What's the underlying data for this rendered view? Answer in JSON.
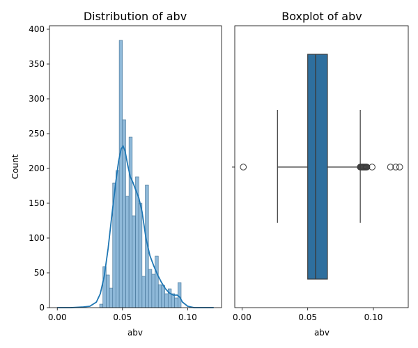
{
  "chart_data": [
    {
      "type": "bar",
      "title": "Distribution of abv",
      "xlabel": "abv",
      "ylabel": "Count",
      "xlim": [
        -0.006,
        0.126
      ],
      "ylim": [
        0,
        405
      ],
      "xticks": [
        0.0,
        0.05,
        0.1
      ],
      "xtick_labels": [
        "0.00",
        "0.05",
        "0.10"
      ],
      "yticks": [
        0,
        50,
        100,
        150,
        200,
        250,
        300,
        350,
        400
      ],
      "ytick_labels": [
        "0",
        "50",
        "100",
        "150",
        "200",
        "250",
        "300",
        "350",
        "400"
      ],
      "bin_width": 0.0025,
      "bins": [
        {
          "x": 0.0325,
          "count": 5
        },
        {
          "x": 0.035,
          "count": 59
        },
        {
          "x": 0.0375,
          "count": 47
        },
        {
          "x": 0.04,
          "count": 28
        },
        {
          "x": 0.0425,
          "count": 179
        },
        {
          "x": 0.045,
          "count": 197
        },
        {
          "x": 0.0475,
          "count": 384
        },
        {
          "x": 0.05,
          "count": 270
        },
        {
          "x": 0.0525,
          "count": 160
        },
        {
          "x": 0.055,
          "count": 245
        },
        {
          "x": 0.0575,
          "count": 132
        },
        {
          "x": 0.06,
          "count": 188
        },
        {
          "x": 0.0625,
          "count": 150
        },
        {
          "x": 0.065,
          "count": 45
        },
        {
          "x": 0.0675,
          "count": 176
        },
        {
          "x": 0.07,
          "count": 55
        },
        {
          "x": 0.0725,
          "count": 48
        },
        {
          "x": 0.075,
          "count": 74
        },
        {
          "x": 0.0775,
          "count": 33
        },
        {
          "x": 0.08,
          "count": 32
        },
        {
          "x": 0.0825,
          "count": 20
        },
        {
          "x": 0.085,
          "count": 27
        },
        {
          "x": 0.0875,
          "count": 20
        },
        {
          "x": 0.09,
          "count": 14
        },
        {
          "x": 0.0925,
          "count": 36
        }
      ],
      "kde": [
        [
          0.0,
          0
        ],
        [
          0.01,
          0
        ],
        [
          0.02,
          1
        ],
        [
          0.025,
          2
        ],
        [
          0.03,
          8
        ],
        [
          0.033,
          20
        ],
        [
          0.036,
          45
        ],
        [
          0.039,
          85
        ],
        [
          0.042,
          135
        ],
        [
          0.045,
          182
        ],
        [
          0.047,
          210
        ],
        [
          0.049,
          228
        ],
        [
          0.0505,
          232
        ],
        [
          0.052,
          225
        ],
        [
          0.054,
          205
        ],
        [
          0.056,
          188
        ],
        [
          0.058,
          180
        ],
        [
          0.06,
          170
        ],
        [
          0.0625,
          158
        ],
        [
          0.065,
          138
        ],
        [
          0.068,
          100
        ],
        [
          0.071,
          75
        ],
        [
          0.074,
          60
        ],
        [
          0.077,
          47
        ],
        [
          0.08,
          36
        ],
        [
          0.083,
          27
        ],
        [
          0.086,
          21
        ],
        [
          0.089,
          18
        ],
        [
          0.092,
          18
        ],
        [
          0.094,
          15
        ],
        [
          0.096,
          8
        ],
        [
          0.1,
          2
        ],
        [
          0.105,
          0
        ],
        [
          0.12,
          0
        ]
      ],
      "color": "#1f77b4"
    },
    {
      "type": "box",
      "title": "Boxplot of abv",
      "xlabel": "abv",
      "xlim": [
        -0.0055,
        0.1265
      ],
      "xticks": [
        0.0,
        0.05,
        0.1
      ],
      "xtick_labels": [
        "0.00",
        "0.05",
        "0.10"
      ],
      "whisker_low": 0.027,
      "q1": 0.05,
      "median": 0.056,
      "q3": 0.065,
      "whisker_high": 0.09,
      "outliers": [
        0.001,
        0.09,
        0.0905,
        0.091,
        0.0915,
        0.092,
        0.0925,
        0.093,
        0.0935,
        0.094,
        0.0945,
        0.095,
        0.099,
        0.113,
        0.117,
        0.12
      ],
      "color": "#2e6f9e"
    }
  ]
}
